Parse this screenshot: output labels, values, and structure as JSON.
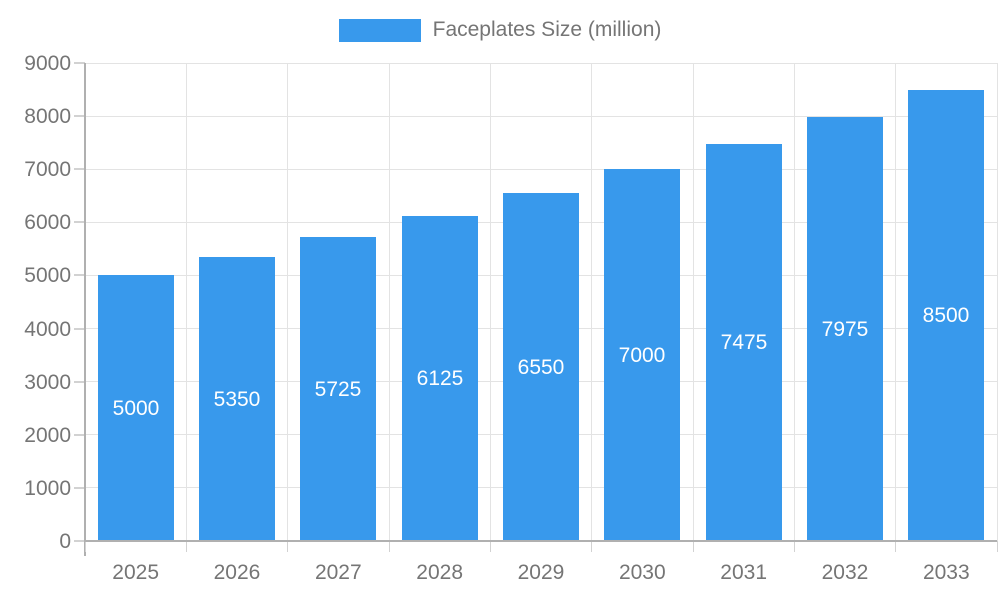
{
  "chart_data": {
    "type": "bar",
    "title": "",
    "legend_entries": [
      "Faceplates Size (million)"
    ],
    "legend_position": "top",
    "categories": [
      "2025",
      "2026",
      "2027",
      "2028",
      "2029",
      "2030",
      "2031",
      "2032",
      "2033"
    ],
    "series": [
      {
        "name": "Faceplates Size (million)",
        "values": [
          5000,
          5350,
          5725,
          6125,
          6550,
          7000,
          7475,
          7975,
          8500
        ]
      }
    ],
    "value_labels": [
      "5000",
      "5350",
      "5725",
      "6125",
      "6550",
      "7000",
      "7475",
      "7975",
      "8500"
    ],
    "value_label_position": "inside-center",
    "xlabel": "",
    "ylabel": "",
    "ylim": [
      0,
      9000
    ],
    "ytick_step": 1000,
    "yticks": [
      "0",
      "1000",
      "2000",
      "3000",
      "4000",
      "5000",
      "6000",
      "7000",
      "8000",
      "9000"
    ],
    "grid": true
  },
  "colors": {
    "bar": "#3899EC",
    "bar_value_text": "#ffffff",
    "gridline": "#e3e3e3",
    "axis_line": "#b0b0b0",
    "tick_mark": "#d2d2d2",
    "tick_text": "#757575",
    "background": "#ffffff"
  }
}
